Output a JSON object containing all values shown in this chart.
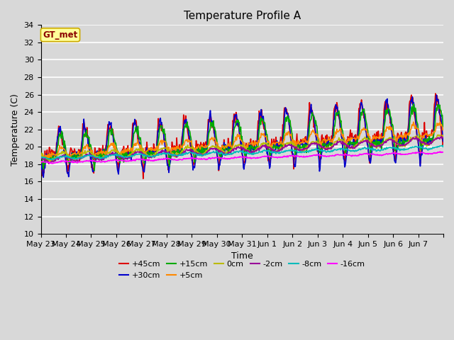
{
  "title": "Temperature Profile A",
  "xlabel": "Time",
  "ylabel": "Temperature (C)",
  "ylim": [
    10,
    34
  ],
  "yticks": [
    10,
    12,
    14,
    16,
    18,
    20,
    22,
    24,
    26,
    28,
    30,
    32,
    34
  ],
  "bg_color": "#d8d8d8",
  "plot_bg_color": "#d8d8d8",
  "grid_color": "#ffffff",
  "legend_label": "GT_met",
  "legend_text_color": "#8B0000",
  "legend_bg": "#FFFF99",
  "legend_border": "#CCAA00",
  "series": [
    {
      "label": "+45cm",
      "color": "#DD0000",
      "lw": 1.2
    },
    {
      "label": "+30cm",
      "color": "#0000CC",
      "lw": 1.2
    },
    {
      "label": "+15cm",
      "color": "#00AA00",
      "lw": 1.2
    },
    {
      "label": "+5cm",
      "color": "#FF8800",
      "lw": 1.2
    },
    {
      "label": "0cm",
      "color": "#BBBB00",
      "lw": 1.2
    },
    {
      "label": "-2cm",
      "color": "#990099",
      "lw": 1.2
    },
    {
      "label": "-8cm",
      "color": "#00BBBB",
      "lw": 1.2
    },
    {
      "label": "-16cm",
      "color": "#FF00FF",
      "lw": 1.2
    }
  ],
  "xtick_labels": [
    "May 23",
    "May 24",
    "May 25",
    "May 26",
    "May 27",
    "May 28",
    "May 29",
    "May 30",
    "May 31",
    "Jun 1",
    "Jun 2",
    "Jun 3",
    "Jun 4",
    "Jun 5",
    "Jun 6",
    "Jun 7"
  ],
  "n_days": 16
}
